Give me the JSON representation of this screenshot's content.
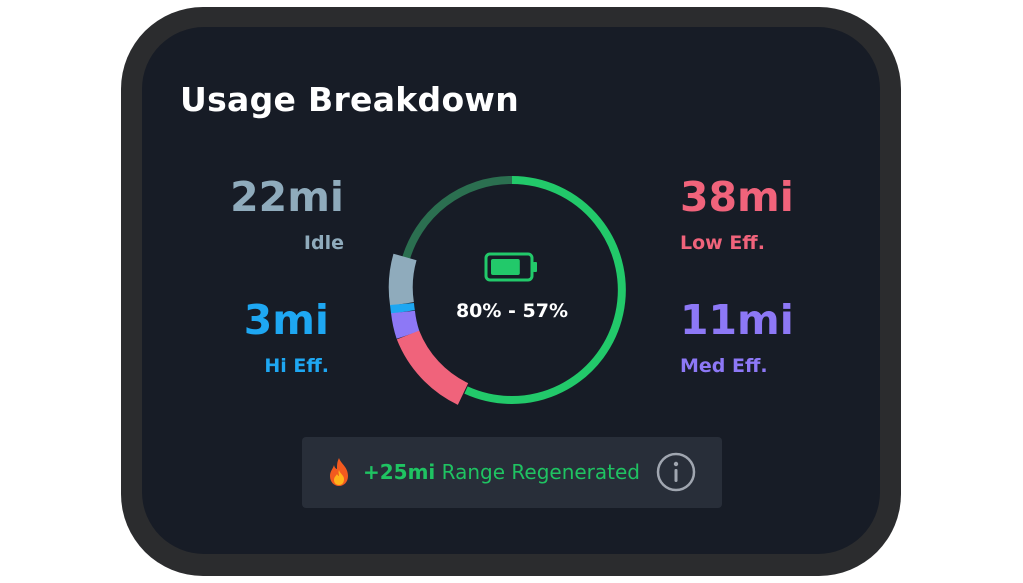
{
  "widget": {
    "title": "Usage Breakdown"
  },
  "stats": {
    "idle": {
      "value": "22mi",
      "label": "Idle",
      "color": "#8fabbc"
    },
    "hi_eff": {
      "value": "3mi",
      "label": "Hi Eff.",
      "color": "#1ea7f2"
    },
    "low_eff": {
      "value": "38mi",
      "label": "Low Eff.",
      "color": "#f0637b"
    },
    "med_eff": {
      "value": "11mi",
      "label": "Med Eff.",
      "color": "#8d78f6"
    }
  },
  "gauge": {
    "center_text": "80% - 57%",
    "icon": "battery-icon",
    "battery_fill": 0.8,
    "colors": {
      "remaining": "#22c96a",
      "used": "#2b6f50",
      "idle": "#8fabbc",
      "hi_eff": "#1ea7f2",
      "med_eff": "#8d78f6",
      "low_eff": "#f0637b"
    }
  },
  "regen": {
    "icon": "fire-icon",
    "amount": "+25mi",
    "label": "Range Regenerated",
    "info_icon": "info-icon",
    "color": "#1fc362"
  }
}
